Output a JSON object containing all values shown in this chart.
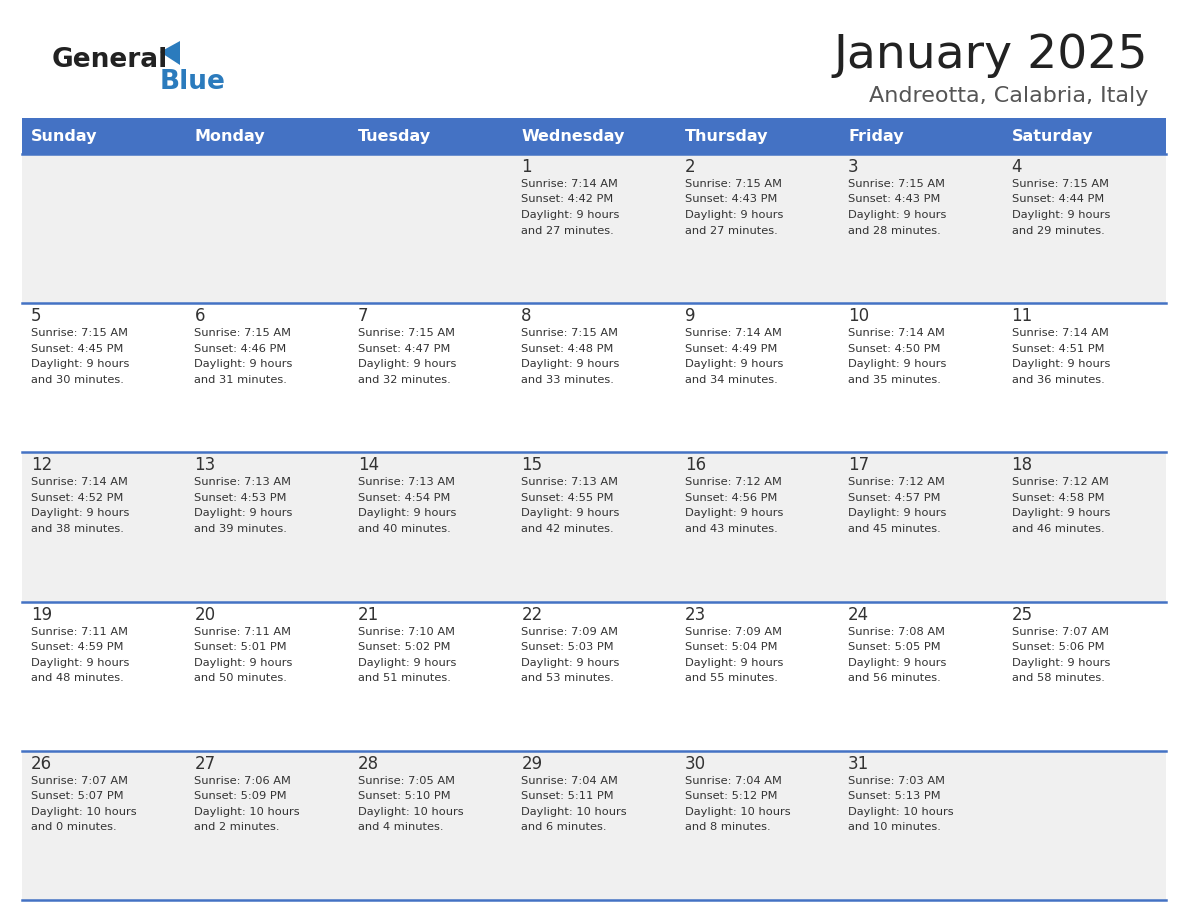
{
  "title": "January 2025",
  "subtitle": "Andreotta, Calabria, Italy",
  "header_color": "#4472C4",
  "header_text_color": "#FFFFFF",
  "header_days": [
    "Sunday",
    "Monday",
    "Tuesday",
    "Wednesday",
    "Thursday",
    "Friday",
    "Saturday"
  ],
  "divider_color": "#4472C4",
  "bg_color": "#FFFFFF",
  "alt_row_color": "#F0F0F0",
  "cell_text_color": "#333333",
  "title_color": "#222222",
  "subtitle_color": "#555555",
  "logo_general_color": "#222222",
  "logo_blue_color": "#2B7BBD",
  "weeks": [
    {
      "days": [
        {
          "day": null,
          "info": null
        },
        {
          "day": null,
          "info": null
        },
        {
          "day": null,
          "info": null
        },
        {
          "day": 1,
          "info": {
            "sunrise": "7:14 AM",
            "sunset": "4:42 PM",
            "daylight": "9 hours and 27 minutes."
          }
        },
        {
          "day": 2,
          "info": {
            "sunrise": "7:15 AM",
            "sunset": "4:43 PM",
            "daylight": "9 hours and 27 minutes."
          }
        },
        {
          "day": 3,
          "info": {
            "sunrise": "7:15 AM",
            "sunset": "4:43 PM",
            "daylight": "9 hours and 28 minutes."
          }
        },
        {
          "day": 4,
          "info": {
            "sunrise": "7:15 AM",
            "sunset": "4:44 PM",
            "daylight": "9 hours and 29 minutes."
          }
        }
      ]
    },
    {
      "days": [
        {
          "day": 5,
          "info": {
            "sunrise": "7:15 AM",
            "sunset": "4:45 PM",
            "daylight": "9 hours and 30 minutes."
          }
        },
        {
          "day": 6,
          "info": {
            "sunrise": "7:15 AM",
            "sunset": "4:46 PM",
            "daylight": "9 hours and 31 minutes."
          }
        },
        {
          "day": 7,
          "info": {
            "sunrise": "7:15 AM",
            "sunset": "4:47 PM",
            "daylight": "9 hours and 32 minutes."
          }
        },
        {
          "day": 8,
          "info": {
            "sunrise": "7:15 AM",
            "sunset": "4:48 PM",
            "daylight": "9 hours and 33 minutes."
          }
        },
        {
          "day": 9,
          "info": {
            "sunrise": "7:14 AM",
            "sunset": "4:49 PM",
            "daylight": "9 hours and 34 minutes."
          }
        },
        {
          "day": 10,
          "info": {
            "sunrise": "7:14 AM",
            "sunset": "4:50 PM",
            "daylight": "9 hours and 35 minutes."
          }
        },
        {
          "day": 11,
          "info": {
            "sunrise": "7:14 AM",
            "sunset": "4:51 PM",
            "daylight": "9 hours and 36 minutes."
          }
        }
      ]
    },
    {
      "days": [
        {
          "day": 12,
          "info": {
            "sunrise": "7:14 AM",
            "sunset": "4:52 PM",
            "daylight": "9 hours and 38 minutes."
          }
        },
        {
          "day": 13,
          "info": {
            "sunrise": "7:13 AM",
            "sunset": "4:53 PM",
            "daylight": "9 hours and 39 minutes."
          }
        },
        {
          "day": 14,
          "info": {
            "sunrise": "7:13 AM",
            "sunset": "4:54 PM",
            "daylight": "9 hours and 40 minutes."
          }
        },
        {
          "day": 15,
          "info": {
            "sunrise": "7:13 AM",
            "sunset": "4:55 PM",
            "daylight": "9 hours and 42 minutes."
          }
        },
        {
          "day": 16,
          "info": {
            "sunrise": "7:12 AM",
            "sunset": "4:56 PM",
            "daylight": "9 hours and 43 minutes."
          }
        },
        {
          "day": 17,
          "info": {
            "sunrise": "7:12 AM",
            "sunset": "4:57 PM",
            "daylight": "9 hours and 45 minutes."
          }
        },
        {
          "day": 18,
          "info": {
            "sunrise": "7:12 AM",
            "sunset": "4:58 PM",
            "daylight": "9 hours and 46 minutes."
          }
        }
      ]
    },
    {
      "days": [
        {
          "day": 19,
          "info": {
            "sunrise": "7:11 AM",
            "sunset": "4:59 PM",
            "daylight": "9 hours and 48 minutes."
          }
        },
        {
          "day": 20,
          "info": {
            "sunrise": "7:11 AM",
            "sunset": "5:01 PM",
            "daylight": "9 hours and 50 minutes."
          }
        },
        {
          "day": 21,
          "info": {
            "sunrise": "7:10 AM",
            "sunset": "5:02 PM",
            "daylight": "9 hours and 51 minutes."
          }
        },
        {
          "day": 22,
          "info": {
            "sunrise": "7:09 AM",
            "sunset": "5:03 PM",
            "daylight": "9 hours and 53 minutes."
          }
        },
        {
          "day": 23,
          "info": {
            "sunrise": "7:09 AM",
            "sunset": "5:04 PM",
            "daylight": "9 hours and 55 minutes."
          }
        },
        {
          "day": 24,
          "info": {
            "sunrise": "7:08 AM",
            "sunset": "5:05 PM",
            "daylight": "9 hours and 56 minutes."
          }
        },
        {
          "day": 25,
          "info": {
            "sunrise": "7:07 AM",
            "sunset": "5:06 PM",
            "daylight": "9 hours and 58 minutes."
          }
        }
      ]
    },
    {
      "days": [
        {
          "day": 26,
          "info": {
            "sunrise": "7:07 AM",
            "sunset": "5:07 PM",
            "daylight": "10 hours and 0 minutes."
          }
        },
        {
          "day": 27,
          "info": {
            "sunrise": "7:06 AM",
            "sunset": "5:09 PM",
            "daylight": "10 hours and 2 minutes."
          }
        },
        {
          "day": 28,
          "info": {
            "sunrise": "7:05 AM",
            "sunset": "5:10 PM",
            "daylight": "10 hours and 4 minutes."
          }
        },
        {
          "day": 29,
          "info": {
            "sunrise": "7:04 AM",
            "sunset": "5:11 PM",
            "daylight": "10 hours and 6 minutes."
          }
        },
        {
          "day": 30,
          "info": {
            "sunrise": "7:04 AM",
            "sunset": "5:12 PM",
            "daylight": "10 hours and 8 minutes."
          }
        },
        {
          "day": 31,
          "info": {
            "sunrise": "7:03 AM",
            "sunset": "5:13 PM",
            "daylight": "10 hours and 10 minutes."
          }
        },
        {
          "day": null,
          "info": null
        }
      ]
    }
  ]
}
